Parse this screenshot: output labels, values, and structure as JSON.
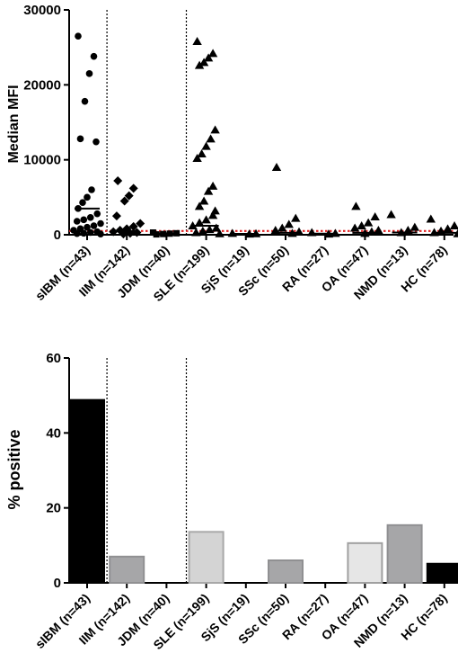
{
  "chart_data": [
    {
      "type": "scatter",
      "ylabel": "Median MFI",
      "ylim": [
        0,
        30000
      ],
      "yticks": [
        0,
        10000,
        20000,
        30000
      ],
      "categories": [
        "sIBM (n=43)",
        "IIM (n=142)",
        "JDM (n=40)",
        "SLE (n=199)",
        "SjS (n=19)",
        "SSc (n=50)",
        "RA (n=27)",
        "OA (n=47)",
        "NMD (n=13)",
        "HC (n=78)"
      ],
      "markers": [
        "circle",
        "diamond",
        "square",
        "triangle",
        "triangle",
        "triangle",
        "triangle",
        "triangle",
        "triangle",
        "triangle"
      ],
      "points": [
        [
          26500,
          23800,
          21500,
          17800,
          12800,
          12400,
          6000,
          5000,
          4300,
          3500,
          2800,
          2300,
          2000,
          1800,
          1500,
          1200,
          1000,
          800,
          600,
          400,
          300,
          200,
          150,
          100
        ],
        [
          7200,
          6200,
          5200,
          4500,
          2500,
          1500,
          1100,
          800,
          600,
          400,
          300,
          200,
          100
        ],
        [
          300,
          200,
          150,
          100,
          50
        ],
        [
          25800,
          24200,
          23600,
          23000,
          22600,
          14000,
          12800,
          11800,
          10800,
          10200,
          6500,
          5800,
          4500,
          3800,
          3200,
          2600,
          2000,
          1600,
          1200,
          900,
          700,
          500,
          300,
          150
        ],
        [
          200,
          150,
          100
        ],
        [
          9000,
          2200,
          1400,
          900,
          600,
          400,
          200
        ],
        [
          300,
          200,
          100
        ],
        [
          3800,
          2400,
          1600,
          1200,
          900,
          600,
          400,
          200
        ],
        [
          2700,
          1000,
          600,
          300
        ],
        [
          2100,
          1200,
          800,
          500,
          300,
          150
        ]
      ],
      "medians": [
        3500,
        500,
        200,
        1200,
        120,
        250,
        150,
        250,
        300,
        250
      ],
      "cutoff": 500,
      "separators_after": [
        0,
        2
      ]
    },
    {
      "type": "bar",
      "ylabel": "% positive",
      "ylim": [
        0,
        60
      ],
      "yticks": [
        0,
        20,
        40,
        60
      ],
      "categories": [
        "sIBM (n=43)",
        "IIM (n=142)",
        "JDM (n=40)",
        "SLE (n=199)",
        "SjS (n=19)",
        "SSc (n=50)",
        "RA (n=27)",
        "OA (n=47)",
        "NMD (n=13)",
        "HC (n=78)"
      ],
      "values": [
        48.8,
        7.0,
        0,
        13.6,
        0,
        6.0,
        0,
        10.6,
        15.4,
        5.1
      ],
      "fills": [
        "#000000",
        "#a6a6a8",
        "#ffffff",
        "#d4d4d4",
        "#ffffff",
        "#a6a6a8",
        "#ffffff",
        "#e6e6e6",
        "#a6a6a8",
        "#000000"
      ],
      "strokes": [
        "#000000",
        "#909092",
        "#000000",
        "#a8a8a8",
        "#000000",
        "#909092",
        "#000000",
        "#a0a0a0",
        "#909092",
        "#000000"
      ],
      "separators_after": [
        0,
        2
      ]
    }
  ]
}
